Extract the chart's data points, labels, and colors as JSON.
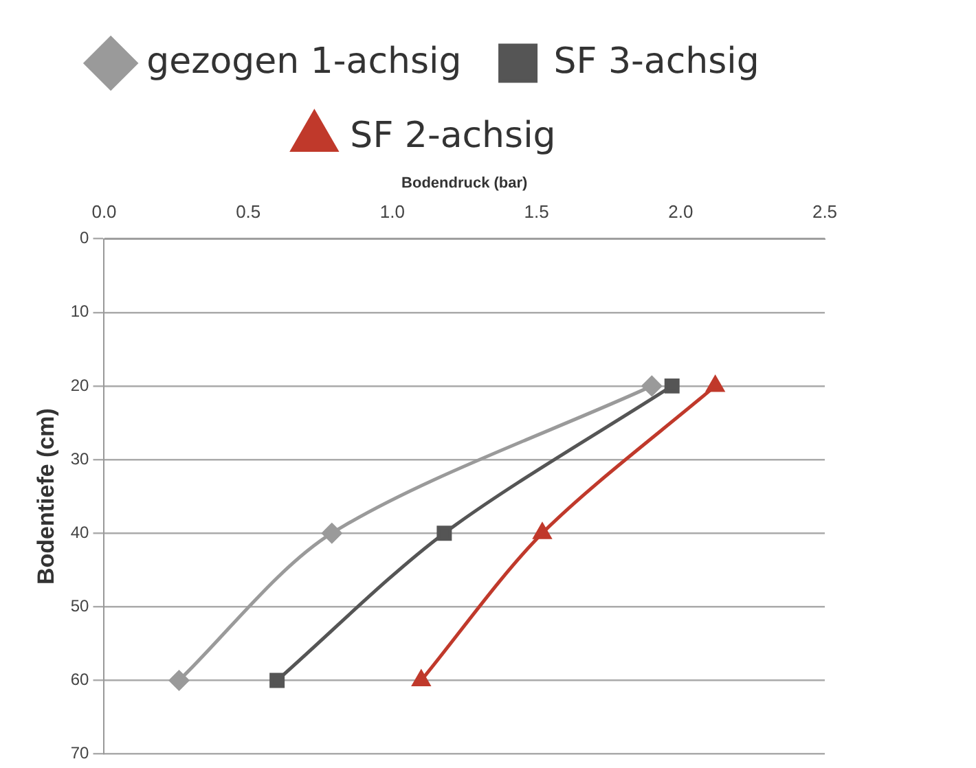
{
  "chart_data": {
    "type": "line",
    "xlabel": "Bodendruck (bar)",
    "ylabel": "Bodentiefe (cm)",
    "xlim": [
      0,
      2.5
    ],
    "xticks": [
      {
        "value": 0,
        "label": "0.0"
      },
      {
        "value": 0.5,
        "label": "0.5"
      },
      {
        "value": 1,
        "label": "1.0"
      },
      {
        "value": 1.5,
        "label": "1.5"
      },
      {
        "value": 2,
        "label": "2.0"
      },
      {
        "value": 2.5,
        "label": "2.5"
      }
    ],
    "ylim": [
      70,
      0
    ],
    "yticks": [
      0,
      10,
      20,
      30,
      40,
      50,
      60,
      70
    ],
    "grid": "y",
    "legend": "top",
    "series": [
      {
        "name": "gezogen 1-achsig",
        "color": "#9a9a9a",
        "marker": "diamond",
        "x": [
          1.9,
          0.79,
          0.26
        ],
        "values": [
          20,
          40,
          60
        ]
      },
      {
        "name": "SF 3-achsig",
        "color": "#555555",
        "marker": "square",
        "x": [
          1.97,
          1.18,
          0.6
        ],
        "values": [
          20,
          40,
          60
        ]
      },
      {
        "name": "SF 2-achsig",
        "color": "#c0392b",
        "marker": "triangle",
        "x": [
          2.12,
          1.52,
          1.1
        ],
        "values": [
          20,
          40,
          60
        ]
      }
    ]
  }
}
